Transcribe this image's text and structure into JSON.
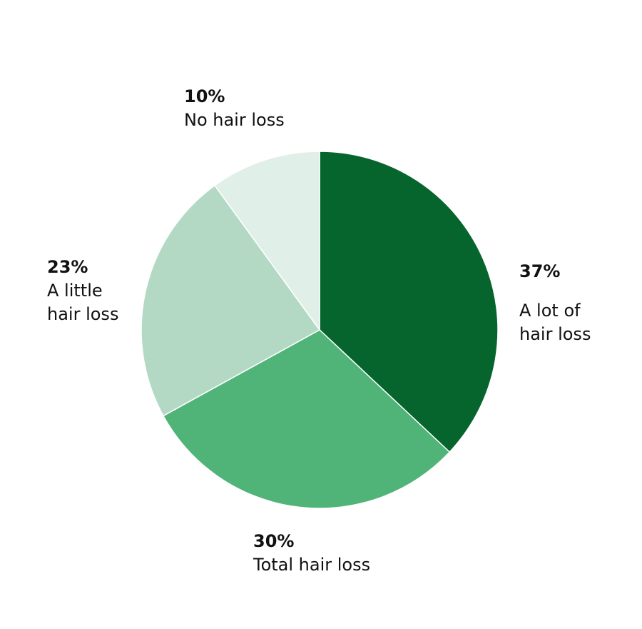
{
  "chart_data": {
    "type": "pie",
    "start": "top",
    "direction": "clockwise",
    "slices": [
      {
        "label": "A lot of\nhair loss",
        "value": 37,
        "pct_label": "37%",
        "color": "#05652d"
      },
      {
        "label": "Total hair loss",
        "value": 30,
        "pct_label": "30%",
        "color": "#50b478"
      },
      {
        "label": "A little\nhair loss",
        "value": 23,
        "pct_label": "23%",
        "color": "#b3d9c5"
      },
      {
        "label": "No hair loss",
        "value": 10,
        "pct_label": "10%",
        "color": "#e0efe8"
      }
    ]
  }
}
